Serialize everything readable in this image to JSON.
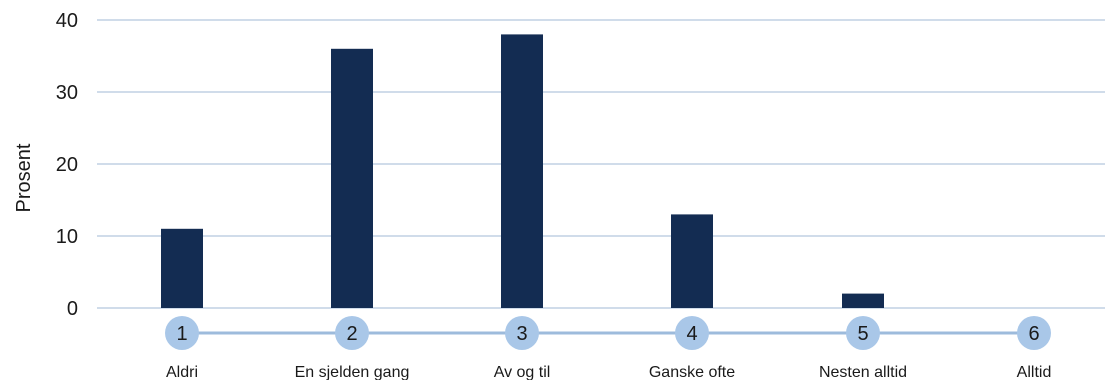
{
  "chart_data": {
    "type": "bar",
    "title": "",
    "xlabel": "",
    "ylabel": "Prosent",
    "ylim": [
      0,
      40
    ],
    "yticks": [
      0,
      10,
      20,
      30,
      40
    ],
    "grid": true,
    "legend": "none",
    "scale_points": [
      "1",
      "2",
      "3",
      "4",
      "5",
      "6"
    ],
    "categories": [
      "Aldri",
      "En sjelden gang",
      "Av og til",
      "Ganske ofte",
      "Nesten alltid",
      "Alltid"
    ],
    "values": [
      11,
      36,
      38,
      13,
      2,
      0
    ],
    "colors": {
      "bar": "#132c52",
      "grid": "#b4c6dd",
      "scale_line": "#9dbbdc",
      "scale_circle": "#a9c7e8"
    }
  }
}
